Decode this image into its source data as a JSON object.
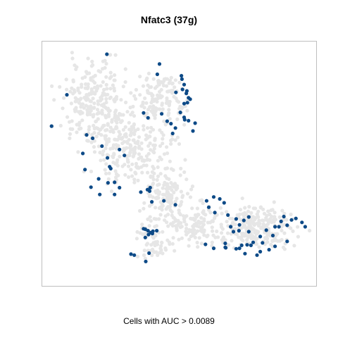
{
  "chart_data": {
    "type": "scatter",
    "title": "Nfatc3 (37g)",
    "xlabel": "Cells with AUC > 0.0089",
    "ylabel": "",
    "xlim": [
      0,
      100
    ],
    "ylim": [
      0,
      100
    ],
    "grid": false,
    "legend": "none",
    "colors": {
      "background_cells": "#e6e6e6",
      "highlighted_cells": "#0d4a87",
      "frame": "#bfbfbf"
    },
    "series": [
      {
        "role": "highlighted",
        "x": [
          23.6,
          42.8,
          42.0,
          50.8,
          51.0,
          51.8,
          51.2,
          52.8,
          52.6,
          53.4,
          54.0,
          53.0,
          51.8,
          48.8,
          43.6,
          38.6,
          37.0,
          45.6,
          48.6,
          47.0,
          47.6,
          50.4,
          51.8,
          53.4,
          52.0,
          55.8,
          55.0,
          9.0,
          3.4,
          14.8,
          18.4,
          21.8,
          16.2,
          23.8,
          24.6,
          25.0,
          28.2,
          30.0,
          26.4,
          17.8,
          15.6,
          20.6,
          24.0,
          26.4,
          28.2,
          21.0,
          39.4,
          36.0,
          39.2,
          38.4,
          48.6,
          44.4,
          40.0,
          37.6,
          37.0,
          38.6,
          40.4,
          41.8,
          38.8,
          37.6,
          39.6,
          40.2,
          32.4,
          33.6,
          39.0,
          37.8,
          60.0,
          62.6,
          64.8,
          66.4,
          60.8,
          63.0,
          67.8,
          72.0,
          73.6,
          75.4,
          70.8,
          68.8,
          71.8,
          75.4,
          69.8,
          59.6,
          66.8,
          72.8,
          72.0,
          74.0,
          78.4,
          79.6,
          82.8,
          85.0,
          84.2,
          81.8,
          85.0,
          87.2,
          88.2,
          91.0,
          92.6,
          94.8,
          96.0,
          89.4,
          86.4,
          79.6,
          80.4,
          77.0,
          74.8,
          70.8,
          67.0,
          62.6,
          66.8,
          76.2,
          89.4
        ],
        "y": [
          94.8,
          90.8,
          86.6,
          86.0,
          84.6,
          82.4,
          80.4,
          79.8,
          78.8,
          77.0,
          76.4,
          75.0,
          74.6,
          79.2,
          70.4,
          68.8,
          70.8,
          67.4,
          64.6,
          66.4,
          62.4,
          71.0,
          69.0,
          67.6,
          68.0,
          66.6,
          63.4,
          78.2,
          65.4,
          54.2,
          60.4,
          57.2,
          61.8,
          52.4,
          48.8,
          48.0,
          55.8,
          53.4,
          37.4,
          40.4,
          47.6,
          43.8,
          42.2,
          42.4,
          40.2,
          37.4,
          40.2,
          38.4,
          38.8,
          39.4,
          33.2,
          34.8,
          34.4,
          23.2,
          23.4,
          22.6,
          22.4,
          22.6,
          21.0,
          19.8,
          21.8,
          21.4,
          13.0,
          12.6,
          13.4,
          10.0,
          34.8,
          36.4,
          35.6,
          34.0,
          32.2,
          30.0,
          29.0,
          25.0,
          26.8,
          28.2,
          27.4,
          24.2,
          22.6,
          22.2,
          22.2,
          17.0,
          17.4,
          16.6,
          15.4,
          13.2,
          12.6,
          14.0,
          14.8,
          16.2,
          20.6,
          22.8,
          24.2,
          26.4,
          28.4,
          27.0,
          27.6,
          26.0,
          24.2,
          24.8,
          24.2,
          20.2,
          17.6,
          17.8,
          16.8,
          15.2,
          15.6,
          15.4,
          15.8,
          16.6,
          18.2
        ]
      }
    ]
  }
}
